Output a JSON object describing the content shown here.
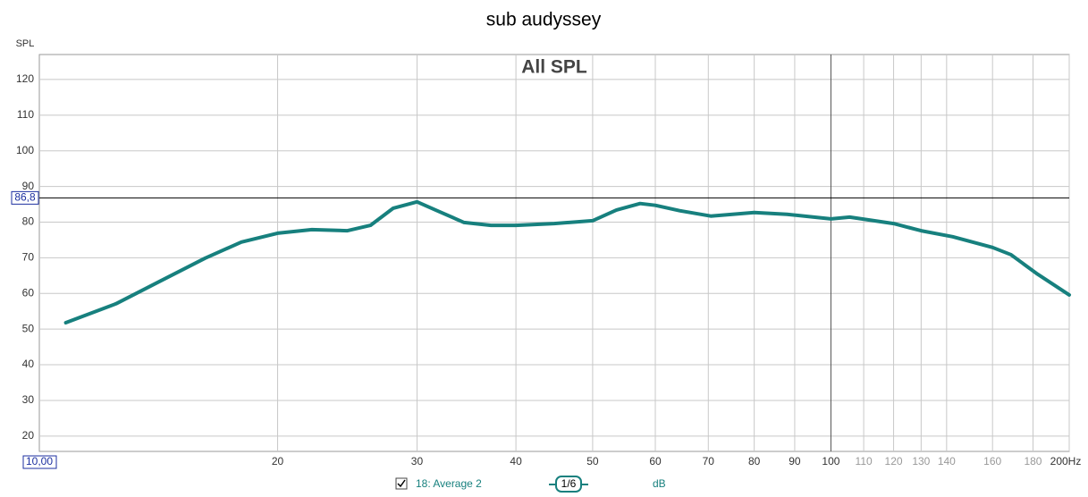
{
  "chart_data": {
    "type": "line",
    "title": "sub audyssey",
    "plot_title": "All SPL",
    "y_label": "SPL",
    "xscale": "log",
    "xlim": [
      10,
      200
    ],
    "ylim": [
      15.7,
      127
    ],
    "xticks": [
      20,
      30,
      40,
      50,
      60,
      70,
      80,
      90,
      100,
      110,
      120,
      130,
      140,
      160,
      180,
      {
        "value": 200,
        "label": "200Hz"
      }
    ],
    "yticks": [
      20,
      30,
      40,
      50,
      60,
      70,
      80,
      90,
      100,
      110,
      120
    ],
    "grid": true,
    "cursor_y": {
      "value": 86.8,
      "label": "86,8"
    },
    "cursor_x_label": "10,00",
    "smoothing": "1/6",
    "units": "dB",
    "series": [
      {
        "name": "18: Average 2",
        "color": "#17807e",
        "x": [
          10.8,
          12.5,
          14.2,
          16.2,
          18.0,
          20,
          22.1,
          24.5,
          26.2,
          28.0,
          30,
          31.8,
          34.4,
          37.2,
          40,
          44.7,
          50,
          53.6,
          57.4,
          60,
          64.4,
          70.5,
          80,
          88.0,
          100,
          105.6,
          120,
          130,
          142.5,
          160,
          168.7,
          182.4,
          200
        ],
        "values": [
          51.8,
          57.1,
          63.4,
          69.9,
          74.4,
          76.9,
          77.9,
          77.6,
          79.1,
          83.9,
          85.7,
          83.2,
          79.9,
          79.1,
          79.1,
          79.6,
          80.4,
          83.4,
          85.2,
          84.7,
          83.2,
          81.7,
          82.7,
          82.2,
          80.9,
          81.4,
          79.6,
          77.6,
          75.9,
          72.9,
          70.9,
          65.4,
          59.6
        ]
      }
    ]
  }
}
